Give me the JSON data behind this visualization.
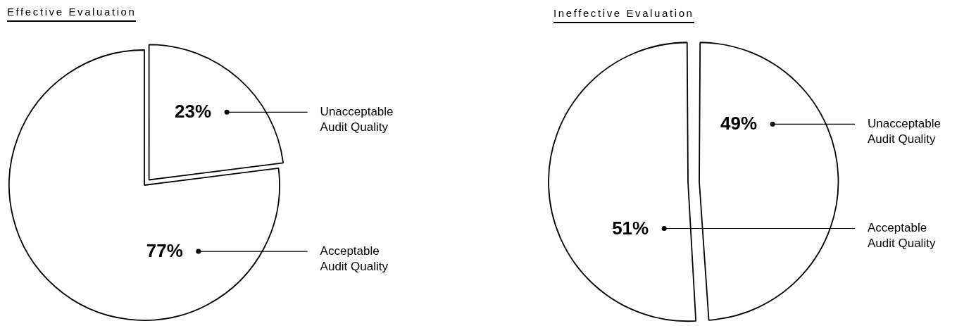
{
  "chart_data": [
    {
      "type": "pie",
      "title": "Effective Evaluation",
      "categories": [
        "Unacceptable Audit Quality",
        "Acceptable Audit Quality"
      ],
      "values": [
        23,
        77
      ],
      "value_labels": [
        "23%",
        "77%"
      ],
      "colors": [
        "#ffffff",
        "#ffffff"
      ]
    },
    {
      "type": "pie",
      "title": "Ineffective Evaluation",
      "categories": [
        "Unacceptable Audit Quality",
        "Acceptable Audit Quality"
      ],
      "values": [
        49,
        51
      ],
      "value_labels": [
        "49%",
        "51%"
      ],
      "colors": [
        "#ffffff",
        "#ffffff"
      ]
    }
  ]
}
